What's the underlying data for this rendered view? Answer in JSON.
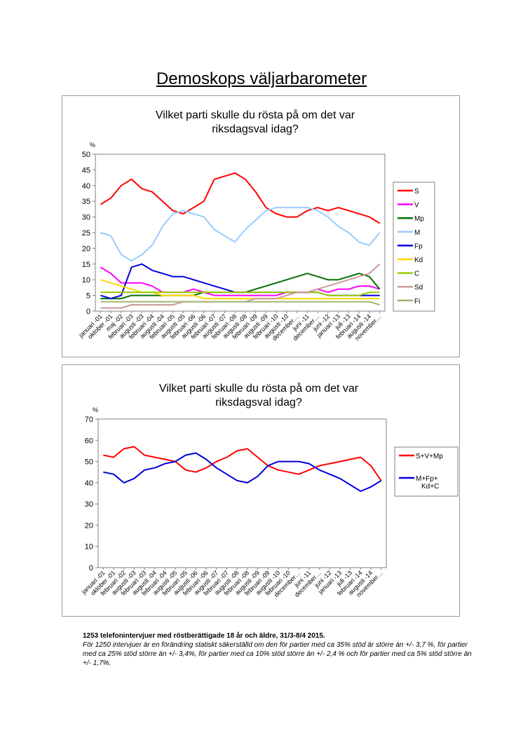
{
  "page_title": "Demoskops väljarbarometer",
  "footnote": {
    "bold": "1253 telefonintervjuer med röstberättigade 18 år och äldre, 31/3-8/4 2015.",
    "italic": "För 1250 intervjuer är en förändring statiskt säkerställd om den för partier med ca 35% stöd är större än +/- 3,7 %, för partier med ca 25% stöd större än +/- 3,4%, för partier med ca 10% stöd större än +/- 2,4 % och för partier med ca 5% stöd större än +/- 1,7%."
  },
  "chart_data": [
    {
      "type": "line",
      "title": "Vilket parti skulle du rösta på om det var riksdagsval idag?",
      "ylabel": "%",
      "ylim": [
        0,
        50
      ],
      "yticks": [
        0,
        5,
        10,
        15,
        20,
        25,
        30,
        35,
        40,
        45,
        50
      ],
      "grid": false,
      "legend": "right",
      "x_labels": [
        "januari -01",
        "oktober -01",
        "maj -02",
        "februari -03",
        "augusti -03",
        "februari -04",
        "augusti -04",
        "februari -05",
        "augusti -05",
        "februari -06",
        "augusti -06",
        "februari -07",
        "augusti -07",
        "februari -08",
        "augusti -08",
        "februari -09",
        "augusti -09",
        "februari -10",
        "augusti -10",
        "december…",
        "juni -11",
        "december…",
        "juni -12",
        "januari -13",
        "juli -13",
        "februari -14",
        "augusti -14",
        "november…"
      ],
      "series": [
        {
          "name": "S",
          "color": "#ff0000",
          "values": [
            34,
            36,
            40,
            42,
            39,
            38,
            35,
            32,
            31,
            33,
            35,
            42,
            43,
            44,
            42,
            38,
            33,
            31,
            30,
            30,
            32,
            33,
            32,
            33,
            32,
            31,
            30,
            28
          ]
        },
        {
          "name": "V",
          "color": "#ff00ff",
          "values": [
            14,
            12,
            9,
            9,
            9,
            8,
            6,
            6,
            6,
            7,
            6,
            5,
            5,
            5,
            5,
            5,
            5,
            5,
            6,
            6,
            6,
            7,
            6,
            7,
            7,
            8,
            8,
            7
          ]
        },
        {
          "name": "Mp",
          "color": "#007000",
          "values": [
            4,
            4,
            4,
            5,
            5,
            5,
            5,
            5,
            5,
            5,
            6,
            6,
            6,
            6,
            6,
            7,
            8,
            9,
            10,
            11,
            12,
            11,
            10,
            10,
            11,
            12,
            11,
            7
          ]
        },
        {
          "name": "M",
          "color": "#99ccff",
          "values": [
            25,
            24,
            18,
            16,
            18,
            21,
            27,
            31,
            32,
            31,
            30,
            26,
            24,
            22,
            26,
            29,
            32,
            33,
            33,
            33,
            33,
            32,
            30,
            27,
            25,
            22,
            21,
            25
          ]
        },
        {
          "name": "Fp",
          "color": "#0000dd",
          "values": [
            5,
            4,
            5,
            14,
            15,
            13,
            12,
            11,
            11,
            10,
            9,
            8,
            7,
            6,
            6,
            6,
            6,
            6,
            6,
            6,
            6,
            6,
            5,
            5,
            5,
            5,
            5,
            5
          ]
        },
        {
          "name": "Kd",
          "color": "#ffd700",
          "values": [
            10,
            9,
            8,
            7,
            6,
            6,
            5,
            5,
            5,
            5,
            4,
            4,
            4,
            4,
            4,
            4,
            4,
            4,
            4,
            4,
            4,
            4,
            4,
            4,
            4,
            4,
            4,
            4
          ]
        },
        {
          "name": "C",
          "color": "#99cc00",
          "values": [
            6,
            6,
            6,
            6,
            6,
            6,
            6,
            6,
            6,
            6,
            6,
            6,
            6,
            6,
            6,
            6,
            6,
            6,
            6,
            6,
            6,
            6,
            5,
            5,
            5,
            5,
            6,
            6
          ]
        },
        {
          "name": "Sd",
          "color": "#cc9999",
          "values": [
            1,
            1,
            1,
            2,
            2,
            2,
            2,
            2,
            3,
            3,
            3,
            3,
            3,
            3,
            3,
            4,
            4,
            4,
            5,
            6,
            6,
            7,
            8,
            9,
            10,
            11,
            12,
            15
          ]
        },
        {
          "name": "Fi",
          "color": "#a0b870",
          "values": [
            3,
            3,
            3,
            3,
            3,
            3,
            3,
            3,
            3,
            3,
            3,
            3,
            3,
            3,
            3,
            3,
            3,
            3,
            3,
            3,
            3,
            3,
            3,
            3,
            3,
            3,
            3,
            2
          ]
        }
      ]
    },
    {
      "type": "line",
      "title": "Vilket parti skulle du rösta på om det var riksdagsval idag?",
      "ylabel": "%",
      "ylim": [
        0,
        70
      ],
      "yticks": [
        0,
        10,
        20,
        30,
        40,
        50,
        60,
        70
      ],
      "grid": false,
      "legend": "right",
      "x_labels": [
        "januari -01",
        "oktober -01",
        "februari -02",
        "augusti -03",
        "februari -03",
        "augusti -04",
        "februari -04",
        "augusti -05",
        "februari -05",
        "augusti -06",
        "februari -06",
        "augusti -07",
        "februari -07",
        "augusti -08",
        "februari -08",
        "augusti -09",
        "februari -09",
        "augusti -10",
        "februari -10",
        "december…",
        "juni -11",
        "december…",
        "juni -12",
        "januari -13",
        "juli -13",
        "februari -14",
        "augusti -14",
        "november…"
      ],
      "series": [
        {
          "name": "S+V+Mp",
          "color": "#ff0000",
          "values": [
            53,
            52,
            56,
            57,
            53,
            52,
            51,
            50,
            46,
            45,
            47,
            50,
            52,
            55,
            56,
            52,
            48,
            46,
            45,
            44,
            46,
            48,
            49,
            50,
            51,
            52,
            48,
            41
          ]
        },
        {
          "name": "M+Fp+Kd+C",
          "legend_lines": [
            "M+Fp+",
            "Kd+C"
          ],
          "color": "#0000dd",
          "values": [
            45,
            44,
            40,
            42,
            46,
            47,
            49,
            50,
            53,
            54,
            51,
            47,
            44,
            41,
            40,
            43,
            48,
            50,
            50,
            50,
            49,
            46,
            44,
            42,
            39,
            36,
            38,
            41
          ]
        }
      ]
    }
  ]
}
